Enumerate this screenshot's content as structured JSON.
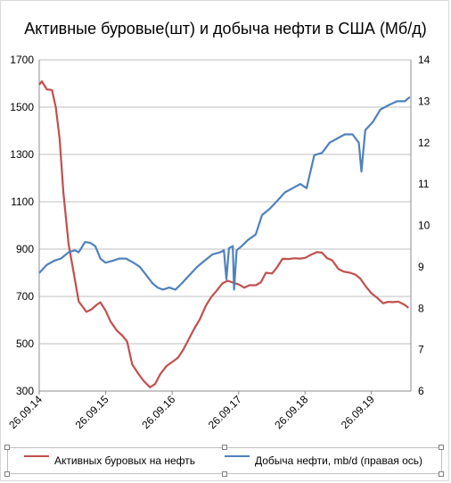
{
  "chart_data": {
    "type": "line",
    "title": "Активные буровые(шт) и добыча нефти в США (Мб/д)",
    "x_axis": {
      "tick_labels": [
        "26.09.14",
        "26.09.15",
        "26.09.16",
        "26.09.17",
        "26.09.18",
        "26.09.19"
      ],
      "range": [
        "2014-09-26",
        "2020-04-30"
      ]
    },
    "y_left": {
      "ylim": [
        300,
        1700
      ],
      "ticks": [
        300,
        500,
        700,
        900,
        1100,
        1300,
        1500,
        1700
      ]
    },
    "y_right": {
      "ylim": [
        6,
        14
      ],
      "ticks": [
        6,
        7,
        8,
        9,
        10,
        11,
        12,
        13,
        14
      ]
    },
    "grid": "horizontal",
    "legend_position": "bottom",
    "series": [
      {
        "name": "Активных буровых на нефть",
        "axis": "left",
        "color": "#c0504d",
        "points": [
          [
            "2014-09-26",
            1595
          ],
          [
            "2014-10-10",
            1609
          ],
          [
            "2014-11-07",
            1575
          ],
          [
            "2014-12-05",
            1572
          ],
          [
            "2014-12-26",
            1500
          ],
          [
            "2015-01-16",
            1366
          ],
          [
            "2015-02-06",
            1140
          ],
          [
            "2015-03-06",
            922
          ],
          [
            "2015-04-03",
            802
          ],
          [
            "2015-05-01",
            679
          ],
          [
            "2015-06-12",
            635
          ],
          [
            "2015-07-10",
            645
          ],
          [
            "2015-08-07",
            664
          ],
          [
            "2015-08-28",
            675
          ],
          [
            "2015-09-25",
            641
          ],
          [
            "2015-10-23",
            594
          ],
          [
            "2015-11-27",
            555
          ],
          [
            "2015-12-25",
            536
          ],
          [
            "2016-01-22",
            510
          ],
          [
            "2016-02-19",
            413
          ],
          [
            "2016-03-25",
            372
          ],
          [
            "2016-04-22",
            343
          ],
          [
            "2016-05-27",
            316
          ],
          [
            "2016-06-24",
            330
          ],
          [
            "2016-07-22",
            371
          ],
          [
            "2016-08-26",
            406
          ],
          [
            "2016-09-30",
            425
          ],
          [
            "2016-10-28",
            441
          ],
          [
            "2016-11-25",
            474
          ],
          [
            "2016-12-30",
            525
          ],
          [
            "2017-01-27",
            566
          ],
          [
            "2017-02-24",
            602
          ],
          [
            "2017-03-31",
            662
          ],
          [
            "2017-04-28",
            697
          ],
          [
            "2017-05-26",
            722
          ],
          [
            "2017-06-30",
            756
          ],
          [
            "2017-07-28",
            766
          ],
          [
            "2017-08-25",
            759
          ],
          [
            "2017-09-29",
            750
          ],
          [
            "2017-10-27",
            737
          ],
          [
            "2017-11-24",
            747
          ],
          [
            "2017-12-29",
            747
          ],
          [
            "2018-01-26",
            759
          ],
          [
            "2018-02-23",
            800
          ],
          [
            "2018-03-29",
            797
          ],
          [
            "2018-04-27",
            825
          ],
          [
            "2018-05-25",
            859
          ],
          [
            "2018-06-29",
            858
          ],
          [
            "2018-07-27",
            861
          ],
          [
            "2018-08-31",
            860
          ],
          [
            "2018-09-28",
            863
          ],
          [
            "2018-10-26",
            875
          ],
          [
            "2018-11-30",
            887
          ],
          [
            "2018-12-28",
            885
          ],
          [
            "2019-01-25",
            862
          ],
          [
            "2019-02-22",
            853
          ],
          [
            "2019-03-29",
            816
          ],
          [
            "2019-04-26",
            805
          ],
          [
            "2019-05-31",
            800
          ],
          [
            "2019-06-28",
            793
          ],
          [
            "2019-07-26",
            776
          ],
          [
            "2019-08-30",
            738
          ],
          [
            "2019-09-27",
            713
          ],
          [
            "2019-10-25",
            696
          ],
          [
            "2019-11-29",
            671
          ],
          [
            "2019-12-27",
            677
          ],
          [
            "2020-01-24",
            676
          ],
          [
            "2020-02-21",
            678
          ],
          [
            "2020-03-27",
            664
          ],
          [
            "2020-04-17",
            652
          ]
        ]
      },
      {
        "name": "Добыча нефти, mb/d (правая ось)",
        "axis": "right",
        "color": "#4f81bd",
        "points": [
          [
            "2014-09-26",
            8.85
          ],
          [
            "2014-11-07",
            9.05
          ],
          [
            "2014-12-19",
            9.15
          ],
          [
            "2015-01-23",
            9.2
          ],
          [
            "2015-03-06",
            9.35
          ],
          [
            "2015-04-10",
            9.4
          ],
          [
            "2015-05-01",
            9.35
          ],
          [
            "2015-06-05",
            9.6
          ],
          [
            "2015-07-03",
            9.58
          ],
          [
            "2015-07-31",
            9.5
          ],
          [
            "2015-08-28",
            9.2
          ],
          [
            "2015-09-25",
            9.1
          ],
          [
            "2015-11-06",
            9.15
          ],
          [
            "2015-12-11",
            9.2
          ],
          [
            "2016-01-15",
            9.2
          ],
          [
            "2016-02-26",
            9.1
          ],
          [
            "2016-04-01",
            9.0
          ],
          [
            "2016-05-06",
            8.8
          ],
          [
            "2016-06-10",
            8.6
          ],
          [
            "2016-07-08",
            8.5
          ],
          [
            "2016-08-05",
            8.45
          ],
          [
            "2016-09-09",
            8.5
          ],
          [
            "2016-10-14",
            8.45
          ],
          [
            "2016-11-18",
            8.6
          ],
          [
            "2016-12-30",
            8.8
          ],
          [
            "2017-02-10",
            9.0
          ],
          [
            "2017-03-24",
            9.15
          ],
          [
            "2017-05-05",
            9.3
          ],
          [
            "2017-06-16",
            9.35
          ],
          [
            "2017-07-07",
            9.4
          ],
          [
            "2017-07-21",
            8.7
          ],
          [
            "2017-08-04",
            9.45
          ],
          [
            "2017-08-25",
            9.5
          ],
          [
            "2017-09-01",
            8.45
          ],
          [
            "2017-09-15",
            9.4
          ],
          [
            "2017-10-13",
            9.5
          ],
          [
            "2017-11-17",
            9.65
          ],
          [
            "2017-12-29",
            9.78
          ],
          [
            "2018-02-02",
            10.25
          ],
          [
            "2018-03-16",
            10.4
          ],
          [
            "2018-04-27",
            10.6
          ],
          [
            "2018-06-08",
            10.8
          ],
          [
            "2018-07-20",
            10.9
          ],
          [
            "2018-08-31",
            11.0
          ],
          [
            "2018-10-05",
            10.9
          ],
          [
            "2018-11-16",
            11.7
          ],
          [
            "2018-12-28",
            11.75
          ],
          [
            "2019-02-08",
            12.0
          ],
          [
            "2019-03-22",
            12.1
          ],
          [
            "2019-05-03",
            12.2
          ],
          [
            "2019-06-14",
            12.2
          ],
          [
            "2019-07-19",
            12.0
          ],
          [
            "2019-08-02",
            11.3
          ],
          [
            "2019-08-23",
            12.3
          ],
          [
            "2019-10-04",
            12.5
          ],
          [
            "2019-11-15",
            12.8
          ],
          [
            "2019-12-27",
            12.9
          ],
          [
            "2020-02-14",
            13.0
          ],
          [
            "2020-03-27",
            13.0
          ],
          [
            "2020-04-24",
            13.1
          ]
        ]
      }
    ]
  }
}
